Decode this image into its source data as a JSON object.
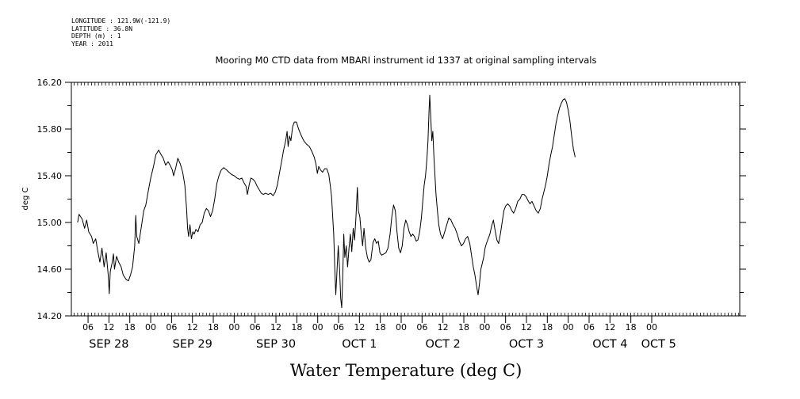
{
  "metadata": [
    "LONGITUDE : 121.9W(-121.9)",
    "LATITUDE : 36.8N",
    "DEPTH (m) : 1",
    "YEAR : 2011"
  ],
  "chart_data": {
    "type": "line",
    "title": "Mooring M0 CTD data from MBARI instrument id 1337 at original sampling intervals",
    "xlabel": "Water Temperature (deg C)",
    "ylabel": "deg C",
    "x_unit": "hours (time of day, 2011)",
    "ylim": [
      14.2,
      16.2
    ],
    "y_ticks": [
      "14.20",
      "14.60",
      "15.00",
      "15.40",
      "15.80",
      "16.20"
    ],
    "x_ticks": [
      {
        "hour": 6,
        "label": "06"
      },
      {
        "hour": 12,
        "label": "12"
      },
      {
        "hour": 18,
        "label": "18"
      },
      {
        "hour": 24,
        "label": "00"
      },
      {
        "hour": 30,
        "label": "06"
      },
      {
        "hour": 36,
        "label": "12"
      },
      {
        "hour": 42,
        "label": "18"
      },
      {
        "hour": 48,
        "label": "00"
      },
      {
        "hour": 54,
        "label": "06"
      },
      {
        "hour": 60,
        "label": "12"
      },
      {
        "hour": 66,
        "label": "18"
      },
      {
        "hour": 72,
        "label": "00"
      },
      {
        "hour": 78,
        "label": "06"
      },
      {
        "hour": 84,
        "label": "12"
      },
      {
        "hour": 90,
        "label": "18"
      },
      {
        "hour": 96,
        "label": "00"
      },
      {
        "hour": 102,
        "label": "06"
      },
      {
        "hour": 108,
        "label": "12"
      },
      {
        "hour": 114,
        "label": "18"
      },
      {
        "hour": 120,
        "label": "00"
      },
      {
        "hour": 126,
        "label": "06"
      },
      {
        "hour": 132,
        "label": "12"
      },
      {
        "hour": 138,
        "label": "18"
      },
      {
        "hour": 144,
        "label": "00"
      },
      {
        "hour": 150,
        "label": "06"
      },
      {
        "hour": 156,
        "label": "12"
      },
      {
        "hour": 162,
        "label": "18"
      },
      {
        "hour": 168,
        "label": "00"
      }
    ],
    "day_labels": [
      {
        "hour": 12,
        "label": "SEP 28"
      },
      {
        "hour": 36,
        "label": "SEP 29"
      },
      {
        "hour": 60,
        "label": "SEP 30"
      },
      {
        "hour": 84,
        "label": "OCT  1"
      },
      {
        "hour": 108,
        "label": "OCT  2"
      },
      {
        "hour": 132,
        "label": "OCT  3"
      },
      {
        "hour": 156,
        "label": "OCT  4"
      },
      {
        "hour": 170,
        "label": "OCT  5"
      }
    ],
    "series": [
      {
        "color": "#000000",
        "points": [
          [
            3.0,
            15.0
          ],
          [
            3.4,
            15.07
          ],
          [
            4.3,
            15.03
          ],
          [
            5.0,
            14.95
          ],
          [
            5.6,
            15.02
          ],
          [
            6.2,
            14.92
          ],
          [
            7.0,
            14.88
          ],
          [
            7.5,
            14.82
          ],
          [
            8.2,
            14.86
          ],
          [
            8.8,
            14.75
          ],
          [
            9.4,
            14.66
          ],
          [
            10.0,
            14.78
          ],
          [
            10.6,
            14.62
          ],
          [
            11.2,
            14.74
          ],
          [
            11.8,
            14.55
          ],
          [
            12.1,
            14.39
          ],
          [
            12.4,
            14.58
          ],
          [
            12.9,
            14.65
          ],
          [
            13.3,
            14.73
          ],
          [
            13.6,
            14.6
          ],
          [
            14.2,
            14.71
          ],
          [
            14.8,
            14.66
          ],
          [
            15.5,
            14.62
          ],
          [
            16.1,
            14.55
          ],
          [
            17.0,
            14.51
          ],
          [
            17.6,
            14.5
          ],
          [
            18.2,
            14.55
          ],
          [
            18.8,
            14.62
          ],
          [
            19.4,
            14.8
          ],
          [
            19.7,
            15.06
          ],
          [
            20.0,
            14.88
          ],
          [
            20.6,
            14.82
          ],
          [
            21.3,
            14.96
          ],
          [
            22.0,
            15.1
          ],
          [
            22.6,
            15.15
          ],
          [
            23.2,
            15.25
          ],
          [
            24.0,
            15.38
          ],
          [
            24.8,
            15.48
          ],
          [
            25.5,
            15.58
          ],
          [
            26.3,
            15.62
          ],
          [
            27.0,
            15.58
          ],
          [
            27.6,
            15.55
          ],
          [
            28.3,
            15.49
          ],
          [
            29.0,
            15.52
          ],
          [
            29.6,
            15.49
          ],
          [
            30.2,
            15.45
          ],
          [
            30.6,
            15.4
          ],
          [
            31.2,
            15.47
          ],
          [
            31.8,
            15.55
          ],
          [
            32.5,
            15.5
          ],
          [
            33.2,
            15.43
          ],
          [
            33.8,
            15.32
          ],
          [
            34.3,
            15.12
          ],
          [
            34.6,
            14.95
          ],
          [
            34.9,
            14.88
          ],
          [
            35.3,
            14.98
          ],
          [
            35.7,
            14.86
          ],
          [
            36.1,
            14.92
          ],
          [
            36.5,
            14.9
          ],
          [
            37.0,
            14.94
          ],
          [
            37.6,
            14.92
          ],
          [
            38.2,
            14.98
          ],
          [
            38.8,
            15.0
          ],
          [
            39.4,
            15.08
          ],
          [
            40.0,
            15.12
          ],
          [
            40.6,
            15.1
          ],
          [
            41.2,
            15.05
          ],
          [
            41.8,
            15.1
          ],
          [
            42.4,
            15.2
          ],
          [
            43.0,
            15.33
          ],
          [
            43.6,
            15.4
          ],
          [
            44.3,
            15.45
          ],
          [
            45.0,
            15.47
          ],
          [
            45.8,
            15.45
          ],
          [
            46.5,
            15.43
          ],
          [
            47.3,
            15.41
          ],
          [
            48.0,
            15.4
          ],
          [
            48.8,
            15.38
          ],
          [
            49.5,
            15.37
          ],
          [
            50.2,
            15.38
          ],
          [
            50.8,
            15.34
          ],
          [
            51.4,
            15.31
          ],
          [
            51.8,
            15.24
          ],
          [
            52.3,
            15.32
          ],
          [
            52.8,
            15.38
          ],
          [
            53.4,
            15.37
          ],
          [
            54.0,
            15.35
          ],
          [
            54.6,
            15.31
          ],
          [
            55.2,
            15.28
          ],
          [
            55.8,
            15.25
          ],
          [
            56.4,
            15.24
          ],
          [
            57.0,
            15.25
          ],
          [
            57.8,
            15.24
          ],
          [
            58.5,
            15.25
          ],
          [
            59.2,
            15.23
          ],
          [
            59.8,
            15.26
          ],
          [
            60.4,
            15.32
          ],
          [
            61.0,
            15.42
          ],
          [
            61.6,
            15.52
          ],
          [
            62.2,
            15.62
          ],
          [
            62.8,
            15.7
          ],
          [
            63.2,
            15.78
          ],
          [
            63.5,
            15.65
          ],
          [
            63.9,
            15.74
          ],
          [
            64.3,
            15.7
          ],
          [
            64.8,
            15.82
          ],
          [
            65.3,
            15.86
          ],
          [
            65.9,
            15.86
          ],
          [
            66.5,
            15.8
          ],
          [
            67.2,
            15.75
          ],
          [
            68.0,
            15.7
          ],
          [
            68.8,
            15.67
          ],
          [
            69.6,
            15.65
          ],
          [
            70.3,
            15.61
          ],
          [
            71.0,
            15.56
          ],
          [
            71.5,
            15.5
          ],
          [
            71.9,
            15.42
          ],
          [
            72.3,
            15.48
          ],
          [
            72.8,
            15.45
          ],
          [
            73.4,
            15.43
          ],
          [
            74.0,
            15.46
          ],
          [
            74.6,
            15.46
          ],
          [
            75.2,
            15.41
          ],
          [
            75.6,
            15.32
          ],
          [
            76.0,
            15.22
          ],
          [
            76.3,
            15.05
          ],
          [
            76.6,
            14.9
          ],
          [
            76.9,
            14.62
          ],
          [
            77.2,
            14.38
          ],
          [
            77.5,
            14.55
          ],
          [
            77.9,
            14.8
          ],
          [
            78.3,
            14.6
          ],
          [
            78.6,
            14.35
          ],
          [
            78.9,
            14.27
          ],
          [
            79.2,
            14.55
          ],
          [
            79.5,
            14.9
          ],
          [
            79.8,
            14.7
          ],
          [
            80.2,
            14.8
          ],
          [
            80.6,
            14.62
          ],
          [
            81.0,
            14.78
          ],
          [
            81.4,
            14.9
          ],
          [
            81.8,
            14.75
          ],
          [
            82.2,
            14.95
          ],
          [
            82.6,
            14.85
          ],
          [
            83.0,
            15.05
          ],
          [
            83.4,
            15.3
          ],
          [
            83.7,
            15.1
          ],
          [
            84.1,
            15.05
          ],
          [
            84.5,
            14.92
          ],
          [
            84.9,
            14.8
          ],
          [
            85.3,
            14.95
          ],
          [
            85.8,
            14.78
          ],
          [
            86.3,
            14.7
          ],
          [
            86.8,
            14.66
          ],
          [
            87.3,
            14.68
          ],
          [
            87.9,
            14.83
          ],
          [
            88.4,
            14.86
          ],
          [
            88.9,
            14.82
          ],
          [
            89.4,
            14.84
          ],
          [
            89.9,
            14.74
          ],
          [
            90.4,
            14.72
          ],
          [
            91.0,
            14.73
          ],
          [
            91.6,
            14.74
          ],
          [
            92.2,
            14.78
          ],
          [
            92.8,
            14.9
          ],
          [
            93.3,
            15.05
          ],
          [
            93.8,
            15.15
          ],
          [
            94.3,
            15.1
          ],
          [
            94.8,
            14.92
          ],
          [
            95.3,
            14.78
          ],
          [
            95.8,
            14.74
          ],
          [
            96.3,
            14.8
          ],
          [
            96.8,
            14.95
          ],
          [
            97.3,
            15.02
          ],
          [
            97.8,
            14.98
          ],
          [
            98.3,
            14.92
          ],
          [
            98.8,
            14.88
          ],
          [
            99.3,
            14.9
          ],
          [
            99.8,
            14.88
          ],
          [
            100.3,
            14.84
          ],
          [
            100.8,
            14.85
          ],
          [
            101.3,
            14.92
          ],
          [
            101.8,
            15.04
          ],
          [
            102.2,
            15.18
          ],
          [
            102.6,
            15.32
          ],
          [
            103.0,
            15.4
          ],
          [
            103.4,
            15.55
          ],
          [
            103.7,
            15.7
          ],
          [
            104.0,
            15.95
          ],
          [
            104.2,
            16.09
          ],
          [
            104.5,
            15.9
          ],
          [
            104.8,
            15.7
          ],
          [
            105.1,
            15.78
          ],
          [
            105.4,
            15.56
          ],
          [
            105.7,
            15.4
          ],
          [
            106.0,
            15.24
          ],
          [
            106.4,
            15.1
          ],
          [
            106.8,
            14.98
          ],
          [
            107.3,
            14.9
          ],
          [
            107.9,
            14.86
          ],
          [
            108.5,
            14.92
          ],
          [
            109.1,
            14.98
          ],
          [
            109.7,
            15.04
          ],
          [
            110.3,
            15.02
          ],
          [
            110.9,
            14.98
          ],
          [
            111.5,
            14.95
          ],
          [
            112.1,
            14.9
          ],
          [
            112.7,
            14.84
          ],
          [
            113.3,
            14.8
          ],
          [
            113.9,
            14.82
          ],
          [
            114.5,
            14.86
          ],
          [
            115.1,
            14.88
          ],
          [
            115.7,
            14.82
          ],
          [
            116.2,
            14.72
          ],
          [
            116.7,
            14.62
          ],
          [
            117.2,
            14.55
          ],
          [
            117.7,
            14.45
          ],
          [
            118.1,
            14.38
          ],
          [
            118.5,
            14.48
          ],
          [
            118.9,
            14.6
          ],
          [
            119.3,
            14.65
          ],
          [
            119.7,
            14.7
          ],
          [
            120.1,
            14.78
          ],
          [
            120.5,
            14.82
          ],
          [
            121.0,
            14.86
          ],
          [
            121.5,
            14.9
          ],
          [
            122.0,
            14.97
          ],
          [
            122.5,
            15.02
          ],
          [
            123.0,
            14.93
          ],
          [
            123.5,
            14.85
          ],
          [
            124.0,
            14.82
          ],
          [
            124.5,
            14.9
          ],
          [
            125.0,
            15.0
          ],
          [
            125.5,
            15.1
          ],
          [
            126.0,
            15.14
          ],
          [
            126.6,
            15.16
          ],
          [
            127.2,
            15.14
          ],
          [
            127.8,
            15.1
          ],
          [
            128.3,
            15.08
          ],
          [
            128.9,
            15.12
          ],
          [
            129.5,
            15.18
          ],
          [
            130.1,
            15.2
          ],
          [
            130.7,
            15.24
          ],
          [
            131.3,
            15.24
          ],
          [
            131.9,
            15.22
          ],
          [
            132.4,
            15.19
          ],
          [
            133.0,
            15.16
          ],
          [
            133.6,
            15.18
          ],
          [
            134.2,
            15.14
          ],
          [
            134.8,
            15.1
          ],
          [
            135.4,
            15.08
          ],
          [
            136.0,
            15.12
          ],
          [
            136.5,
            15.2
          ],
          [
            137.0,
            15.26
          ],
          [
            137.5,
            15.32
          ],
          [
            138.0,
            15.4
          ],
          [
            138.5,
            15.5
          ],
          [
            139.0,
            15.58
          ],
          [
            139.5,
            15.65
          ],
          [
            140.0,
            15.75
          ],
          [
            140.5,
            15.85
          ],
          [
            141.0,
            15.92
          ],
          [
            141.5,
            15.98
          ],
          [
            142.0,
            16.02
          ],
          [
            142.5,
            16.05
          ],
          [
            143.0,
            16.06
          ],
          [
            143.5,
            16.03
          ],
          [
            144.0,
            15.96
          ],
          [
            144.5,
            15.87
          ],
          [
            145.0,
            15.74
          ],
          [
            145.5,
            15.63
          ],
          [
            146.0,
            15.56
          ]
        ]
      }
    ],
    "grid": false,
    "legend": "none"
  }
}
